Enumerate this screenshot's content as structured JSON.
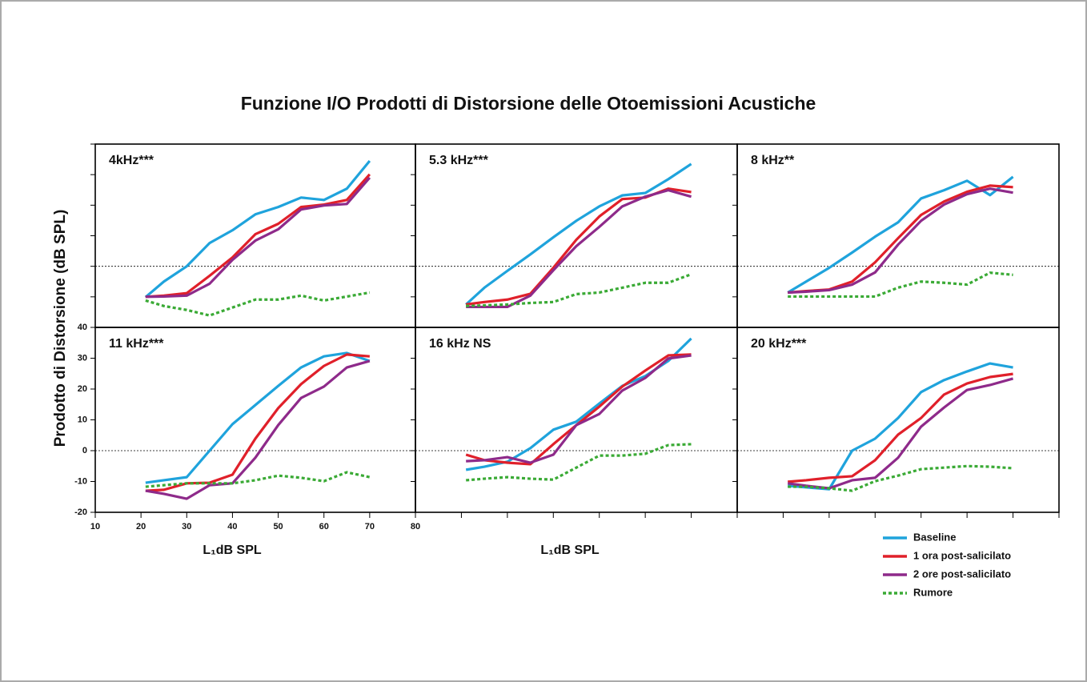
{
  "title": "Funzione I/O Prodotti di Distorsione delle Otoemissioni Acustiche",
  "ylabel": "Prodotto di Distorsione (dB SPL)",
  "xlabel": "L₁dB SPL",
  "legend": [
    {
      "name": "Baseline",
      "color": "#1fa3dc",
      "dotted": false
    },
    {
      "name": "1 ora post-salicilato",
      "color": "#e0202a",
      "dotted": false
    },
    {
      "name": "2 ore post-salicilato",
      "color": "#8e2a8a",
      "dotted": false
    },
    {
      "name": "Rumore",
      "color": "#3aaa35",
      "dotted": true
    }
  ],
  "chart_data": [
    {
      "type": "line",
      "title": "4kHz***",
      "x": [
        21,
        25,
        30,
        35,
        40,
        45,
        50,
        55,
        60,
        65,
        70
      ],
      "series": [
        {
          "values": [
            -10.1,
            -5,
            0,
            7.6,
            11.8,
            17,
            19.4,
            22.5,
            21.7,
            25.4,
            34.5
          ]
        },
        {
          "values": [
            -10,
            -9.6,
            -8.8,
            -3.1,
            2.9,
            10.5,
            13.9,
            19.4,
            20.2,
            21.7,
            30.1
          ]
        },
        {
          "values": [
            -10,
            -9.9,
            -9.6,
            -5.7,
            2.1,
            8.4,
            12.1,
            18.6,
            19.9,
            20.4,
            29
          ]
        },
        {
          "values": [
            -11.2,
            -13,
            -14.3,
            -16.1,
            -13.5,
            -10.9,
            -10.9,
            -9.6,
            -11.2,
            -9.9,
            -8.6
          ]
        }
      ],
      "xlim": [
        10,
        80
      ],
      "ylim": [
        -20,
        40
      ],
      "xticks": [
        10,
        20,
        30,
        40,
        50,
        60,
        70,
        80
      ],
      "yticks": [
        -20,
        -10,
        0,
        10,
        20,
        30,
        40
      ],
      "zero_line": true,
      "xticklabels": false,
      "yticklabels": false
    },
    {
      "type": "line",
      "title": "5.3 kHz***",
      "x": [
        21,
        25,
        30,
        35,
        40,
        45,
        50,
        55,
        60,
        65,
        70
      ],
      "series": [
        {
          "values": [
            -12.5,
            -7,
            -1.5,
            3.9,
            9.5,
            14.9,
            19.6,
            23.2,
            24,
            28.5,
            33.5
          ]
        },
        {
          "values": [
            -12.5,
            -11.7,
            -10.9,
            -9,
            -0.5,
            8.7,
            16.3,
            22,
            22.5,
            25.4,
            24.3
          ]
        },
        {
          "values": [
            -13.3,
            -13.3,
            -13.3,
            -9.6,
            -1.3,
            6.6,
            12.9,
            19.6,
            22.8,
            24.9,
            22.8
          ]
        },
        {
          "values": [
            -13,
            -12.8,
            -12.5,
            -12,
            -11.7,
            -9.1,
            -8.6,
            -7,
            -5.4,
            -5.4,
            -2.6
          ]
        }
      ],
      "xlim": [
        10,
        80
      ],
      "ylim": [
        -20,
        40
      ],
      "xticks": [
        10,
        20,
        30,
        40,
        50,
        60,
        70,
        80
      ],
      "yticks": [
        -20,
        -10,
        0,
        10,
        20,
        30,
        40
      ],
      "zero_line": true,
      "xticklabels": false,
      "yticklabels": false
    },
    {
      "type": "line",
      "title": "8 kHz**",
      "x": [
        21,
        25,
        30,
        35,
        40,
        45,
        50,
        55,
        60,
        65,
        70
      ],
      "series": [
        {
          "values": [
            -8.6,
            -5,
            -0.5,
            4.5,
            9.7,
            14.4,
            22.2,
            24.9,
            28,
            23.3,
            29.3
          ]
        },
        {
          "values": [
            -8.6,
            -8.1,
            -7.6,
            -5,
            1.3,
            9.2,
            16.8,
            21.2,
            24.4,
            26.4,
            25.9
          ]
        },
        {
          "values": [
            -8.6,
            -8.3,
            -7.8,
            -6,
            -2,
            7.1,
            14.9,
            20.2,
            23.6,
            25.4,
            24.1
          ]
        },
        {
          "values": [
            -9.9,
            -9.9,
            -9.9,
            -9.9,
            -9.9,
            -7,
            -5,
            -5.4,
            -6,
            -2.1,
            -2.8
          ]
        }
      ],
      "xlim": [
        10,
        80
      ],
      "ylim": [
        -20,
        40
      ],
      "xticks": [
        10,
        20,
        30,
        40,
        50,
        60,
        70,
        80
      ],
      "yticks": [
        -20,
        -10,
        0,
        10,
        20,
        30,
        40
      ],
      "zero_line": true,
      "xticklabels": false,
      "yticklabels": false
    },
    {
      "type": "line",
      "title": "11 kHz***",
      "x": [
        21,
        25,
        30,
        35,
        40,
        45,
        50,
        55,
        60,
        65,
        70
      ],
      "series": [
        {
          "values": [
            -10.4,
            -9.6,
            -8.6,
            0,
            8.6,
            14.8,
            21,
            27,
            30.6,
            31.7,
            29.1
          ]
        },
        {
          "values": [
            -13,
            -12.7,
            -10.6,
            -10.4,
            -7.8,
            3.9,
            13.8,
            21.6,
            27.5,
            31.2,
            30.6
          ]
        },
        {
          "values": [
            -13,
            -14,
            -15.6,
            -11.2,
            -10.6,
            -2.3,
            8.3,
            17.1,
            20.8,
            27,
            29.1
          ]
        },
        {
          "values": [
            -11.7,
            -11.2,
            -10.6,
            -10.6,
            -10.6,
            -9.6,
            -8.1,
            -8.8,
            -9.9,
            -7,
            -8.6
          ]
        }
      ],
      "xlim": [
        10,
        80
      ],
      "ylim": [
        -20,
        40
      ],
      "xticks": [
        10,
        20,
        30,
        40,
        50,
        60,
        70,
        80
      ],
      "yticks": [
        -20,
        -10,
        0,
        10,
        20,
        30,
        40
      ],
      "zero_line": true,
      "xticklabels": true,
      "yticklabels": true
    },
    {
      "type": "line",
      "title": "16 kHz NS",
      "x": [
        21,
        25,
        30,
        35,
        40,
        45,
        50,
        55,
        60,
        65,
        70
      ],
      "series": [
        {
          "values": [
            -6.2,
            -5.2,
            -3.6,
            0.8,
            6.8,
            9.4,
            15.3,
            21,
            24.2,
            29.1,
            36.4
          ]
        },
        {
          "values": [
            -1.3,
            -3.1,
            -3.9,
            -4.4,
            2.1,
            8.3,
            14.3,
            20.8,
            26,
            30.9,
            31.2
          ]
        },
        {
          "values": [
            -3.4,
            -3.1,
            -2.1,
            -3.9,
            -1.3,
            8.3,
            11.9,
            19.5,
            23.6,
            29.9,
            30.9
          ]
        },
        {
          "values": [
            -9.6,
            -9.1,
            -8.6,
            -9.1,
            -9.4,
            -5.5,
            -1.6,
            -1.6,
            -1,
            1.8,
            2.1
          ]
        }
      ],
      "xlim": [
        10,
        80
      ],
      "ylim": [
        -20,
        40
      ],
      "xticks": [
        10,
        20,
        30,
        40,
        50,
        60,
        70,
        80
      ],
      "yticks": [
        -20,
        -10,
        0,
        10,
        20,
        30,
        40
      ],
      "zero_line": true,
      "xticklabels": false,
      "yticklabels": false
    },
    {
      "type": "line",
      "title": "20 kHz***",
      "x": [
        21,
        25,
        30,
        35,
        40,
        45,
        50,
        55,
        60,
        65,
        70
      ],
      "series": [
        {
          "values": [
            -11.4,
            -11.9,
            -12.5,
            0,
            3.9,
            10.6,
            19,
            22.9,
            25.7,
            28.3,
            27
          ]
        },
        {
          "values": [
            -10.1,
            -9.6,
            -8.8,
            -8.3,
            -3.1,
            5.2,
            10.6,
            18.2,
            21.8,
            23.9,
            24.9
          ]
        },
        {
          "values": [
            -10.6,
            -11.4,
            -12.2,
            -9.6,
            -8.8,
            -2.3,
            7.8,
            14,
            19.7,
            21.3,
            23.4
          ]
        },
        {
          "values": [
            -11.7,
            -11.7,
            -12.2,
            -13,
            -9.9,
            -8.1,
            -6,
            -5.5,
            -5,
            -5.2,
            -5.7
          ]
        }
      ],
      "xlim": [
        10,
        80
      ],
      "ylim": [
        -20,
        40
      ],
      "xticks": [
        10,
        20,
        30,
        40,
        50,
        60,
        70,
        80
      ],
      "yticks": [
        -20,
        -10,
        0,
        10,
        20,
        30,
        40
      ],
      "zero_line": true,
      "xticklabels": false,
      "yticklabels": false
    }
  ]
}
